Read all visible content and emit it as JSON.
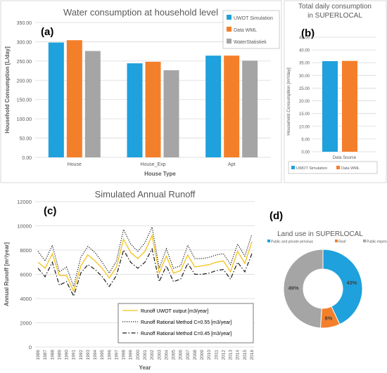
{
  "chart_data": [
    {
      "id": "a",
      "panel_label": "(a)",
      "type": "bar",
      "title": "Water consumption at household level",
      "xlabel": "House Type",
      "ylabel": "Household Consumption [L/day]",
      "ylim": [
        0,
        350
      ],
      "yticks": [
        "0.00",
        "50.00",
        "100.00",
        "150.00",
        "200.00",
        "250.00",
        "300.00",
        "350.00"
      ],
      "categories": [
        "House",
        "House_Exp",
        "Apt"
      ],
      "series": [
        {
          "name": "UWOT Simulation",
          "color": "#1ea1dc",
          "values": [
            298,
            244,
            264
          ]
        },
        {
          "name": "Data WML",
          "color": "#f47f2b",
          "values": [
            304,
            248,
            264
          ]
        },
        {
          "name": "WaterStatistiek",
          "color": "#a5a5a5",
          "values": [
            276,
            226,
            251
          ]
        }
      ],
      "legend": "top-right",
      "grid": true
    },
    {
      "id": "b",
      "panel_label": "(b)",
      "type": "bar",
      "title": "Total daily consumption in SUPERLOCAL",
      "title_lines": [
        "Total daily consumption",
        "in SUPERLOCAL"
      ],
      "xlabel": "Data Source",
      "ylabel": "Household Consumption [m³/day]",
      "ylim": [
        0,
        45
      ],
      "yticks": [
        "0.00",
        "5.00",
        "10.00",
        "15.00",
        "20.00",
        "25.00",
        "30.00",
        "35.00",
        "40.00",
        "45.00"
      ],
      "categories": [
        ""
      ],
      "series": [
        {
          "name": "UWOT Simulation",
          "color": "#1ea1dc",
          "values": [
            35.6
          ]
        },
        {
          "name": "Data WML",
          "color": "#f47f2b",
          "values": [
            35.7
          ]
        }
      ],
      "legend": "bottom",
      "grid": true
    },
    {
      "id": "c",
      "panel_label": "(c)",
      "type": "line",
      "title": "Simulated Annual Runoff",
      "xlabel": "Year",
      "ylabel": "Annual Runoff [m³/year]",
      "ylim": [
        0,
        12000
      ],
      "yticks": [
        "0",
        "2000",
        "4000",
        "6000",
        "8000",
        "10000",
        "12000"
      ],
      "x": [
        1986,
        1987,
        1988,
        1989,
        1990,
        1991,
        1992,
        1993,
        1994,
        1995,
        1996,
        1997,
        1998,
        1999,
        2000,
        2001,
        2002,
        2003,
        2004,
        2005,
        2006,
        2007,
        2008,
        2009,
        2010,
        2011,
        2012,
        2013,
        2014,
        2015,
        2016
      ],
      "series": [
        {
          "name": "Runoff UWOT output [m3/year]",
          "color": "#f2c21a",
          "dash": "solid",
          "values": [
            7000,
            6500,
            7700,
            5900,
            5900,
            4600,
            6700,
            7600,
            7100,
            6500,
            5700,
            6600,
            8900,
            7800,
            7300,
            7900,
            9200,
            6100,
            7500,
            6100,
            6300,
            7600,
            6600,
            6700,
            6800,
            7000,
            7100,
            6200,
            7900,
            6900,
            8700
          ]
        },
        {
          "name": "Runoff Rational Method C=0.55 [m3/year]",
          "color": "#1a1a1a",
          "dash": "dot",
          "values": [
            7900,
            7100,
            8400,
            6200,
            6600,
            5000,
            7400,
            8300,
            7800,
            7000,
            6100,
            7100,
            9700,
            8500,
            7900,
            8600,
            9900,
            6500,
            8100,
            6500,
            6700,
            8400,
            7300,
            7300,
            7400,
            7600,
            7700,
            6800,
            8500,
            7500,
            9300
          ]
        },
        {
          "name": "Runoff Rational Method C=0.45 [m3/year]",
          "color": "#1a1a1a",
          "dash": "dashdot",
          "values": [
            6500,
            5800,
            7000,
            5100,
            5400,
            4200,
            6100,
            6800,
            6400,
            5800,
            5000,
            5900,
            8000,
            7000,
            6500,
            7000,
            8100,
            5400,
            6700,
            5400,
            5600,
            6900,
            6000,
            6000,
            6100,
            6300,
            6400,
            5600,
            7000,
            6200,
            7700
          ]
        }
      ],
      "legend": "bottom-right",
      "grid": true
    },
    {
      "id": "d",
      "panel_label": "(d)",
      "type": "pie",
      "title": "Land use in SUPERLOCAL",
      "categories": [
        "Public and private pervious",
        "Roof",
        "Public impervious"
      ],
      "values": [
        43,
        8,
        49
      ],
      "labels": [
        "43%",
        "8%",
        "49%"
      ],
      "colors": [
        "#1ea1dc",
        "#f47f2b",
        "#a5a5a5"
      ],
      "legend": "top"
    }
  ]
}
